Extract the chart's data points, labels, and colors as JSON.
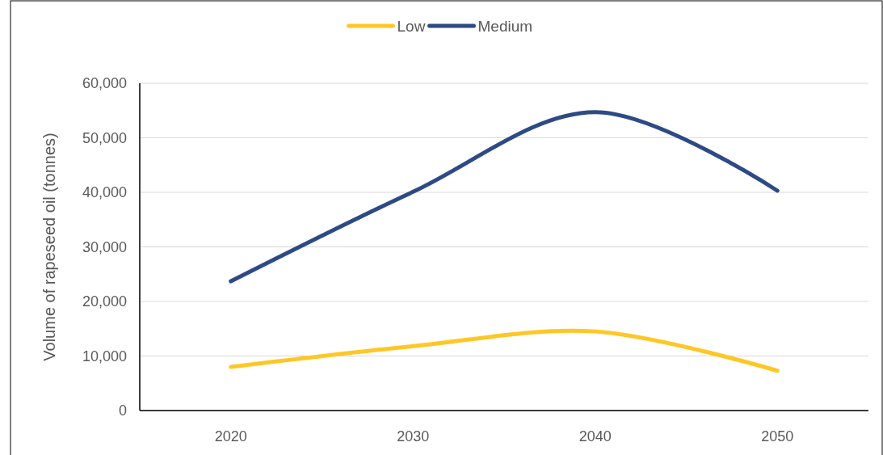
{
  "chart_data": {
    "type": "line",
    "ylabel": "Volume of rapeseed oil (tonnes)",
    "categories": [
      "2020",
      "2030",
      "2040",
      "2050"
    ],
    "series": [
      {
        "name": "Low",
        "color": "#ffc726",
        "values": [
          8000,
          11800,
          14500,
          7300
        ]
      },
      {
        "name": "Medium",
        "color": "#2e4a85",
        "values": [
          23700,
          40100,
          54700,
          40300
        ]
      }
    ],
    "ylim": [
      0,
      60000
    ],
    "yticks": [
      {
        "value": 0,
        "label": "0"
      },
      {
        "value": 10000,
        "label": "10,000"
      },
      {
        "value": 20000,
        "label": "20,000"
      },
      {
        "value": 30000,
        "label": "30,000"
      },
      {
        "value": 40000,
        "label": "40,000"
      },
      {
        "value": 50000,
        "label": "50,000"
      },
      {
        "value": 60000,
        "label": "60,000"
      }
    ],
    "grid": "y",
    "legend": "top",
    "marker": "none",
    "line_style": "solid"
  }
}
